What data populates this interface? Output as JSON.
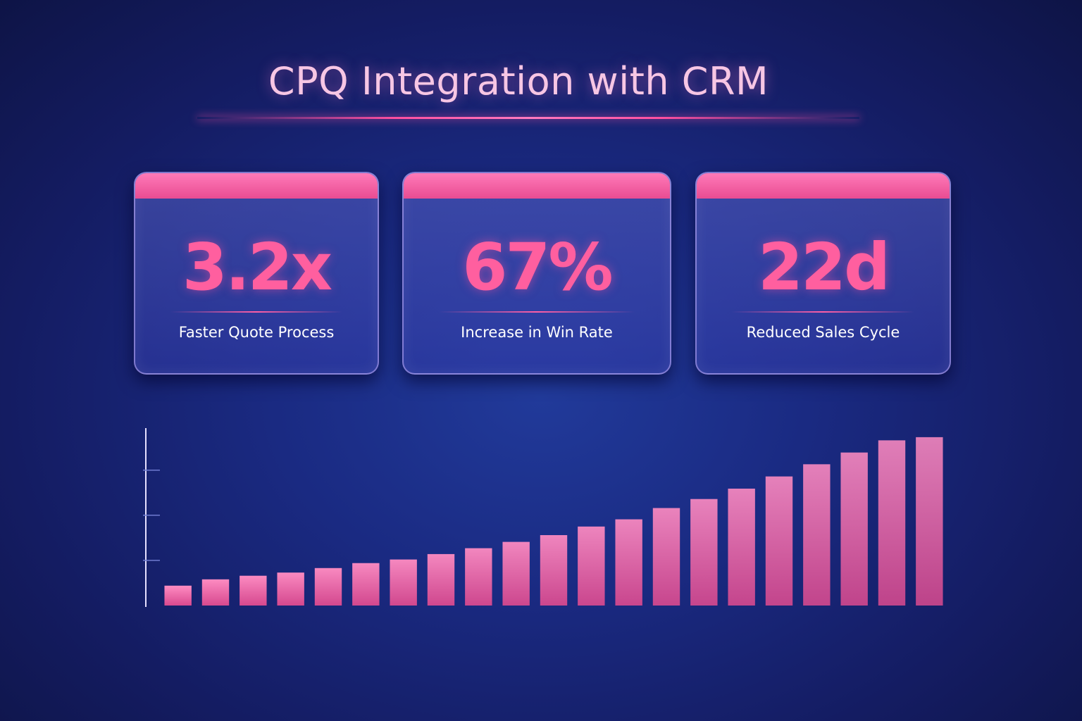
{
  "title": "CPQ Integration with CRM",
  "cards": [
    {
      "value": "3.2x",
      "label": "Faster Quote Process"
    },
    {
      "value": "67%",
      "label": "Increase in Win Rate"
    },
    {
      "value": "22d",
      "label": "Reduced Sales Cycle"
    }
  ],
  "colors": {
    "accent": "#ff5f9f",
    "background": "#1a2a82",
    "bar": "#f06aa8"
  },
  "chart_data": {
    "type": "bar",
    "title": "",
    "xlabel": "",
    "ylabel": "",
    "ylim": [
      0,
      3.9
    ],
    "yticks": [
      1,
      2,
      3
    ],
    "grid": false,
    "values": [
      0.44,
      0.58,
      0.66,
      0.73,
      0.83,
      0.94,
      1.02,
      1.14,
      1.27,
      1.41,
      1.56,
      1.75,
      1.91,
      2.16,
      2.36,
      2.59,
      2.86,
      3.13,
      3.39,
      3.66,
      3.73
    ]
  }
}
